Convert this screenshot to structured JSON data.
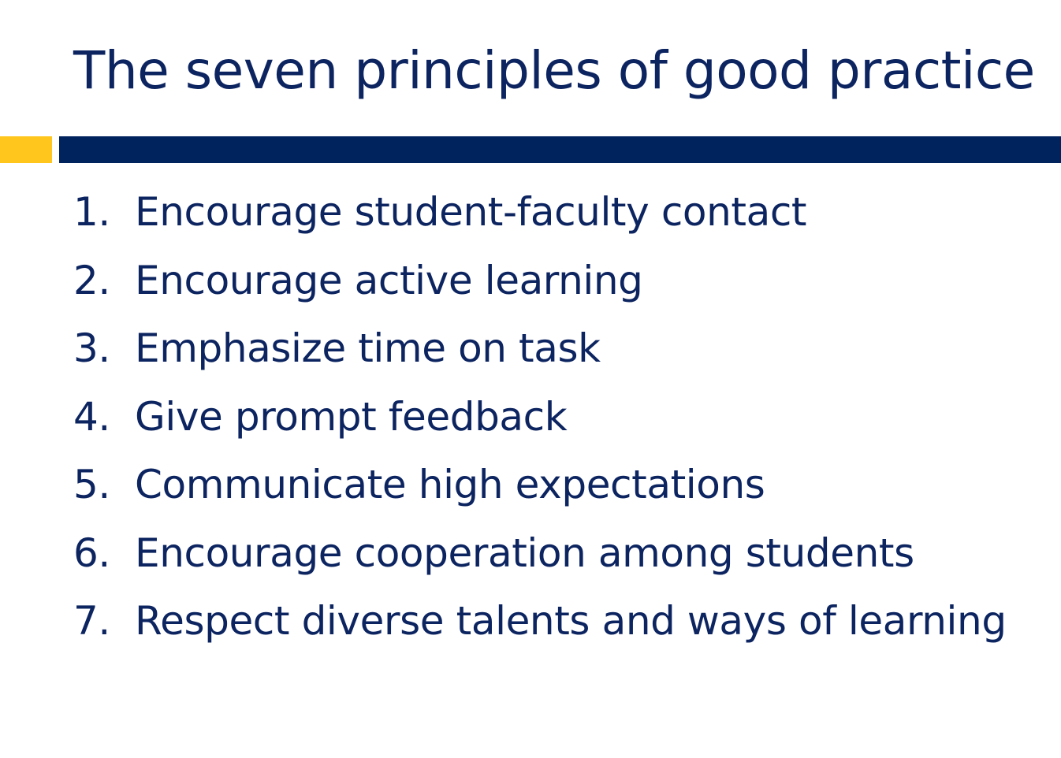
{
  "slide": {
    "title": "The seven principles of good practice",
    "colors": {
      "title_text": "#0c2460",
      "accent_yellow": "#ffc61e",
      "rule_navy": "#00235d"
    },
    "principles": [
      {
        "number": "1.",
        "text": "Encourage student-faculty contact"
      },
      {
        "number": "2.",
        "text": "Encourage active learning"
      },
      {
        "number": "3.",
        "text": "Emphasize time on task"
      },
      {
        "number": "4.",
        "text": "Give prompt feedback"
      },
      {
        "number": "5.",
        "text": "Communicate high expectations"
      },
      {
        "number": "6.",
        "text": "Encourage cooperation among students"
      },
      {
        "number": "7.",
        "text": "Respect diverse talents and ways of learning"
      }
    ]
  }
}
